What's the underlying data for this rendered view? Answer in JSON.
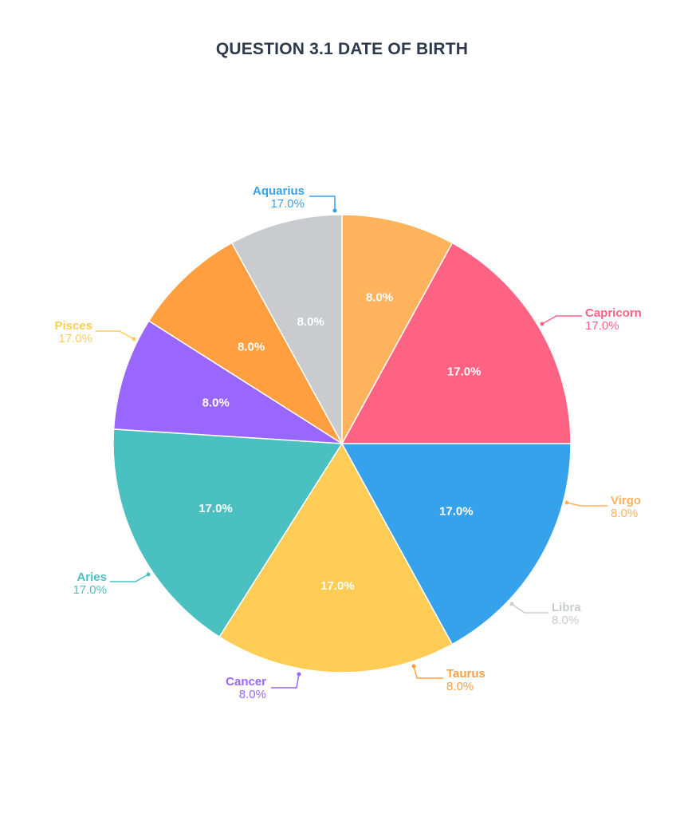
{
  "chart_data": {
    "type": "pie",
    "title": "QUESTION 3.1 DATE OF BIRTH",
    "slices": [
      {
        "name": "Capricorn",
        "value": 17.0,
        "label": "17.0%",
        "color": "#ff6384"
      },
      {
        "name": "Virgo",
        "value": 8.0,
        "label": "8.0%",
        "color": "#ffb35c"
      },
      {
        "name": "Libra",
        "value": 8.0,
        "label": "8.0%",
        "color": "#c9cbcf"
      },
      {
        "name": "Taurus",
        "value": 8.0,
        "label": "8.0%",
        "color": "#ff9f40"
      },
      {
        "name": "Cancer",
        "value": 8.0,
        "label": "8.0%",
        "color": "#9966ff"
      },
      {
        "name": "Aries",
        "value": 17.0,
        "label": "17.0%",
        "color": "#4bc0c0"
      },
      {
        "name": "Pisces",
        "value": 17.0,
        "label": "17.0%",
        "color": "#ffcd56"
      },
      {
        "name": "Aquarius",
        "value": 17.0,
        "label": "17.0%",
        "color": "#36a2eb"
      }
    ],
    "legend": "outside labels with leader lines"
  }
}
